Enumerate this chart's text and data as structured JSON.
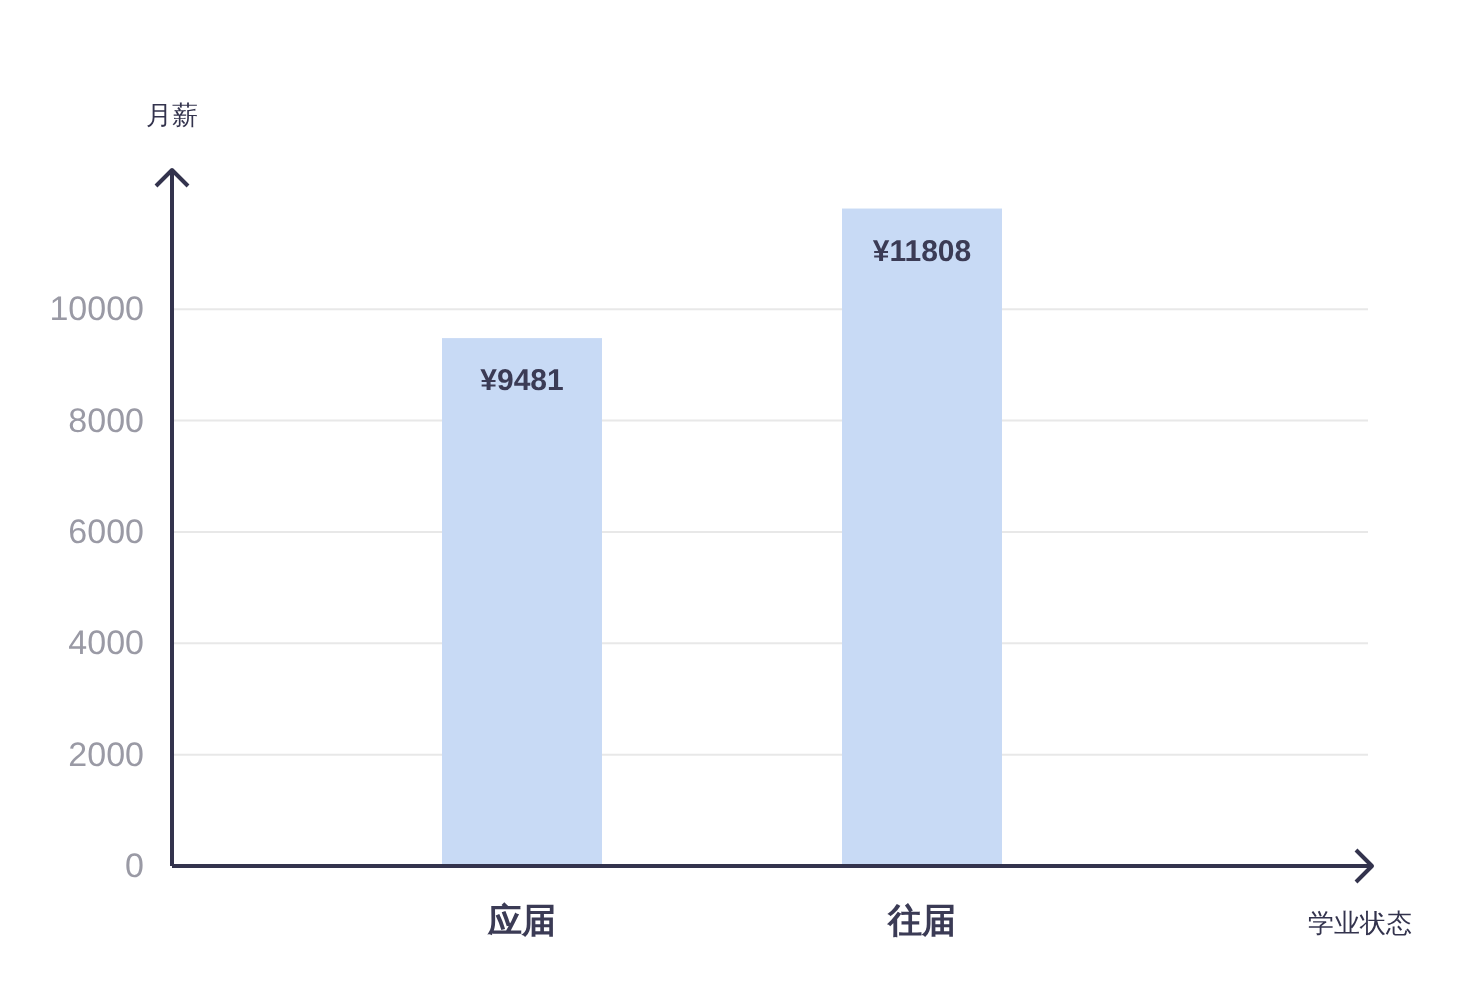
{
  "chart_data": {
    "type": "bar",
    "xlabel": "学业状态",
    "ylabel": "月薪",
    "categories": [
      "应届",
      "往届"
    ],
    "series": [
      {
        "color": "#c8daf5",
        "values": [
          9481,
          11808
        ],
        "value_labels": [
          "¥9481",
          "¥11808"
        ]
      }
    ],
    "ylim": [
      0,
      12500
    ],
    "yticks": [
      0,
      2000,
      4000,
      6000,
      8000,
      10000
    ],
    "grid": "y"
  }
}
